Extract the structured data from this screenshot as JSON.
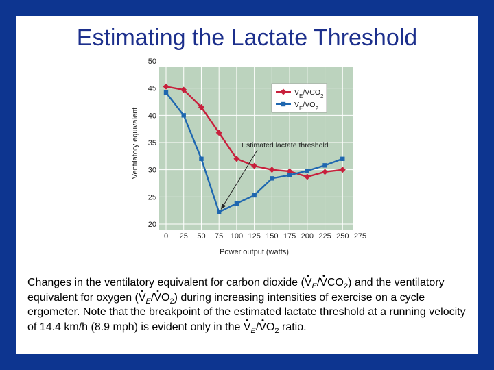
{
  "slide": {
    "title": "Estimating the Lactate Threshold",
    "caption_parts": [
      "Changes in the ventilatory equivalent for carbon dioxide (",
      "V",
      "E",
      "/",
      "V",
      "CO",
      "2",
      ") and the ventilatory equivalent for oxygen (",
      "V",
      "E",
      "/",
      "V",
      "O",
      "2",
      ") during increasing intensities of exercise on a cycle ergometer. Note that the breakpoint of the estimated lactate threshold at a running velocity of 14.4 km/h (8.9 mph) is evident only in the ",
      "V",
      "E",
      "/",
      "V",
      "O",
      "2",
      " ratio."
    ]
  },
  "chart_data": {
    "type": "line",
    "xlabel": "Power output (watts)",
    "ylabel": "Ventilatory equivalent",
    "x": [
      0,
      25,
      50,
      75,
      100,
      125,
      150,
      175,
      200,
      225,
      250
    ],
    "xticks": [
      "0",
      "25",
      "50",
      "75",
      "100",
      "125",
      "150",
      "175",
      "200",
      "225",
      "250",
      "275"
    ],
    "yticks": [
      "20",
      "25",
      "30",
      "35",
      "40",
      "45",
      "50"
    ],
    "xlim": [
      0,
      275
    ],
    "ylim": [
      20,
      50
    ],
    "grid": true,
    "legend_position": "top-right",
    "annotation": "Estimated lactate threshold",
    "annotation_point": {
      "x": 75,
      "y": 22.2
    },
    "series": [
      {
        "name_parts": [
          "V",
          "E",
          "/V",
          "CO",
          "2"
        ],
        "color": "#c8203c",
        "marker": "diamond",
        "values": [
          45.3,
          44.7,
          41.5,
          36.8,
          32.0,
          30.7,
          30.0,
          29.7,
          28.7,
          29.6,
          30.0
        ]
      },
      {
        "name_parts": [
          "V",
          "E",
          "/V",
          "O",
          "2"
        ],
        "color": "#1f67b0",
        "marker": "square",
        "values": [
          44.2,
          40.0,
          32.0,
          22.2,
          23.8,
          25.3,
          28.4,
          29.0,
          29.8,
          30.8,
          32.0
        ]
      }
    ]
  }
}
